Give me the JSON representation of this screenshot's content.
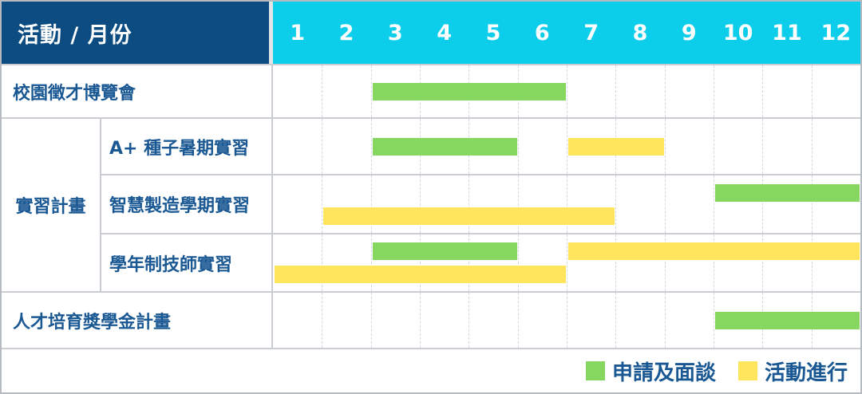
{
  "header": {
    "label": "活動 / 月份",
    "months": [
      "1",
      "2",
      "3",
      "4",
      "5",
      "6",
      "7",
      "8",
      "9",
      "10",
      "11",
      "12"
    ]
  },
  "colors": {
    "header_bg": "#0C4C80",
    "month_ruler_bg": "#0CCEEA",
    "header_text": "#FFFFFF",
    "label_text": "#1A5893",
    "apply_green": "#85D75F",
    "ongoing_yellow": "#FFE45C",
    "gridline": "#D3D7DA",
    "separator": "#C9CCD0",
    "outer_border": "#B6BBC1"
  },
  "phases": {
    "apply": {
      "label": "申請及面談",
      "color": "#85D75F"
    },
    "ongoing": {
      "label": "活動進行",
      "color": "#FFE45C"
    }
  },
  "legend": [
    {
      "phase": "apply",
      "label": "申請及面談"
    },
    {
      "phase": "ongoing",
      "label": "活動進行"
    }
  ],
  "chart_data": {
    "type": "bar",
    "subtype": "gantt",
    "title": "活動 / 月份",
    "xlabel": "月份",
    "x_ticks": [
      1,
      2,
      3,
      4,
      5,
      6,
      7,
      8,
      9,
      10,
      11,
      12
    ],
    "x_range": [
      1,
      12
    ],
    "grid": true,
    "legend_position": "bottom-right",
    "series": [
      {
        "name": "申請及面談",
        "color": "#85D75F"
      },
      {
        "name": "活動進行",
        "color": "#FFE45C"
      }
    ],
    "rows": [
      {
        "activity": "校園徵才博覽會",
        "lines": [
          [
            {
              "phase": "apply",
              "start": 3,
              "end": 6
            }
          ]
        ]
      },
      {
        "group": "實習計畫",
        "children": [
          {
            "activity": "A+ 種子暑期實習",
            "lines": [
              [
                {
                  "phase": "apply",
                  "start": 3,
                  "end": 5
                },
                {
                  "phase": "ongoing",
                  "start": 7,
                  "end": 8
                }
              ]
            ]
          },
          {
            "activity": "智慧製造學期實習",
            "lines": [
              [
                {
                  "phase": "apply",
                  "start": 10,
                  "end": 12
                }
              ],
              [
                {
                  "phase": "ongoing",
                  "start": 2,
                  "end": 7
                }
              ]
            ]
          },
          {
            "activity": "學年制技師實習",
            "lines": [
              [
                {
                  "phase": "apply",
                  "start": 3,
                  "end": 5
                },
                {
                  "phase": "ongoing",
                  "start": 7,
                  "end": 12
                }
              ],
              [
                {
                  "phase": "ongoing",
                  "start": 1,
                  "end": 6
                }
              ]
            ]
          }
        ]
      },
      {
        "activity": "人才培育獎學金計畫",
        "lines": [
          [
            {
              "phase": "apply",
              "start": 10,
              "end": 12
            }
          ]
        ]
      }
    ]
  }
}
